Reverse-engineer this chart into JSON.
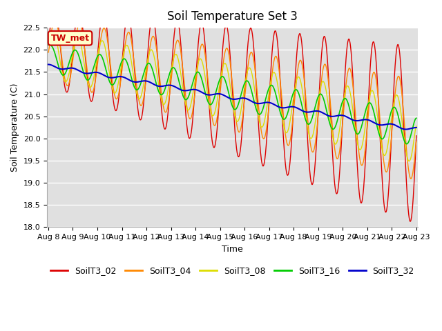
{
  "title": "Soil Temperature Set 3",
  "xlabel": "Time",
  "ylabel": "Soil Temperature (C)",
  "ylim": [
    18.0,
    22.5
  ],
  "annotation": "TW_met",
  "annotation_color": "#cc0000",
  "annotation_bg": "#ffffcc",
  "series_colors": {
    "SoilT3_02": "#dd0000",
    "SoilT3_04": "#ff8800",
    "SoilT3_08": "#dddd00",
    "SoilT3_16": "#00cc00",
    "SoilT3_32": "#0000cc"
  },
  "x_start_day": 8,
  "x_end_day": 23,
  "x_tick_days": [
    8,
    9,
    10,
    11,
    12,
    13,
    14,
    15,
    16,
    17,
    18,
    19,
    20,
    21,
    22,
    23
  ],
  "x_tick_labels": [
    "Aug 8",
    "Aug 9",
    "Aug 10",
    "Aug 11",
    "Aug 12",
    "Aug 13",
    "Aug 14",
    "Aug 15",
    "Aug 16",
    "Aug 17",
    "Aug 18",
    "Aug 19",
    "Aug 20",
    "Aug 21",
    "Aug 22",
    "Aug 23"
  ],
  "background_color": "#e0e0e0",
  "figure_bg": "#ffffff",
  "grid_color": "#ffffff",
  "title_fontsize": 12,
  "axis_label_fontsize": 9,
  "tick_fontsize": 8,
  "legend_fontsize": 9
}
